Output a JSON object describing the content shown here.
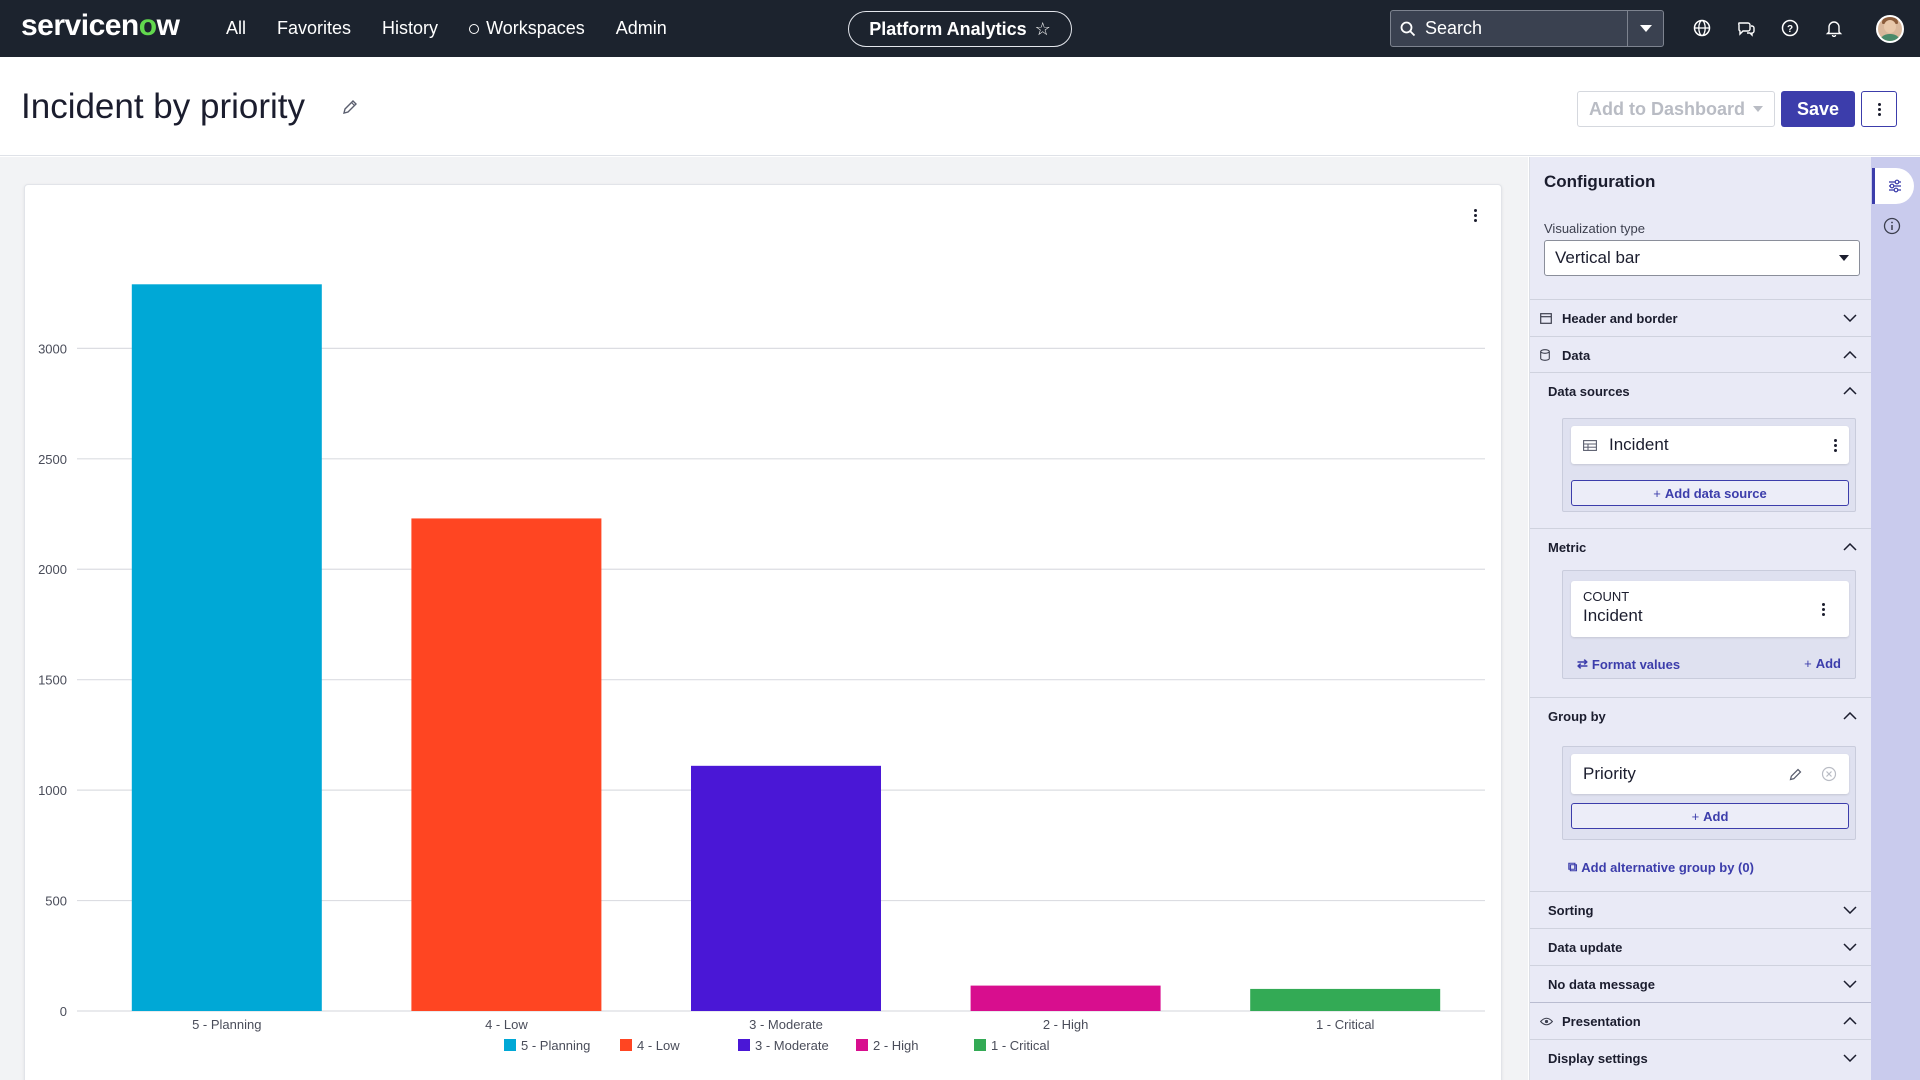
{
  "nav": {
    "logo_prefix": "servicen",
    "logo_o": "o",
    "logo_suffix": "w",
    "links": [
      "All",
      "Favorites",
      "History",
      "Workspaces",
      "Admin"
    ],
    "app_pill": "Platform Analytics",
    "search_placeholder": "Search",
    "icons": [
      "globe-icon",
      "chat-icon",
      "help-icon",
      "bell-icon"
    ]
  },
  "header": {
    "title": "Incident by priority",
    "add_to_dashboard": "Add to Dashboard",
    "save": "Save"
  },
  "chart_data": {
    "type": "bar",
    "categories": [
      "5 - Planning",
      "4 - Low",
      "3 - Moderate",
      "2 - High",
      "1 - Critical"
    ],
    "values": [
      3290,
      2230,
      1110,
      115,
      100
    ],
    "colors": [
      "#00a8d6",
      "#ff4522",
      "#4a17d6",
      "#d80e8e",
      "#33aa55"
    ],
    "yticks": [
      0,
      500,
      1000,
      1500,
      2000,
      2500,
      3000
    ],
    "ylim": [
      0,
      3400
    ],
    "legend_position": "bottom",
    "grid": true
  },
  "config": {
    "title": "Configuration",
    "viz_type_label": "Visualization type",
    "viz_type_value": "Vertical bar",
    "header_border": "Header and border",
    "data": "Data",
    "data_sources": "Data sources",
    "data_source_item": "Incident",
    "add_data_source": "Add data source",
    "metric": "Metric",
    "metric_agg": "COUNT",
    "metric_table": "Incident",
    "format_values": "Format values",
    "add": "Add",
    "group_by": "Group by",
    "group_by_item": "Priority",
    "add_alt_group": "Add alternative group by (0)",
    "sorting": "Sorting",
    "data_update": "Data update",
    "no_data_message": "No data message",
    "presentation": "Presentation",
    "display_settings": "Display settings"
  }
}
